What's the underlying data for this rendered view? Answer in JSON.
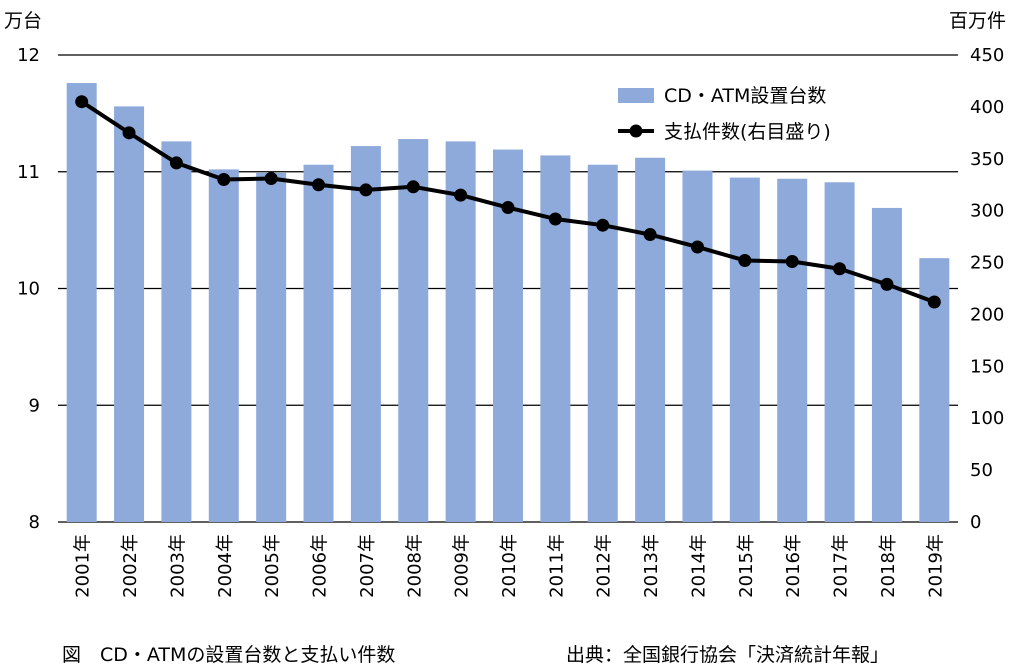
{
  "chart_data": {
    "type": "bar+line",
    "categories": [
      "2001年",
      "2002年",
      "2003年",
      "2004年",
      "2005年",
      "2006年",
      "2007年",
      "2008年",
      "2009年",
      "2010年",
      "2011年",
      "2012年",
      "2013年",
      "2014年",
      "2015年",
      "2016年",
      "2017年",
      "2018年",
      "2019年"
    ],
    "y_left_label": "万台",
    "y_right_label": "百万件",
    "y_left_lim": [
      8,
      12
    ],
    "y_left_ticks": [
      "8",
      "9",
      "10",
      "11",
      "12"
    ],
    "y_right_lim": [
      0,
      450
    ],
    "y_right_ticks": [
      "0",
      "50",
      "100",
      "150",
      "200",
      "250",
      "300",
      "350",
      "400",
      "450"
    ],
    "grid": true,
    "legend_position": "top-right",
    "series": [
      {
        "name": "CD・ATM設置台数",
        "kind": "bar",
        "axis": "left",
        "color": "#8eaadb",
        "values": [
          11.76,
          11.56,
          11.26,
          11.02,
          10.99,
          11.06,
          11.22,
          11.28,
          11.26,
          11.19,
          11.14,
          11.06,
          11.12,
          11.01,
          10.95,
          10.94,
          10.91,
          10.69,
          10.26
        ]
      },
      {
        "name": "支払件数(右目盛り)",
        "kind": "line",
        "axis": "right",
        "color": "#000000",
        "values": [
          405,
          375,
          346,
          330,
          331,
          325,
          320,
          323,
          315,
          303,
          292,
          286,
          277,
          265,
          252,
          251,
          244,
          229,
          212
        ]
      }
    ]
  },
  "captions": {
    "left": "図　CD・ATMの設置台数と支払い件数",
    "right": "出典：全国銀行協会「決済統計年報」"
  }
}
